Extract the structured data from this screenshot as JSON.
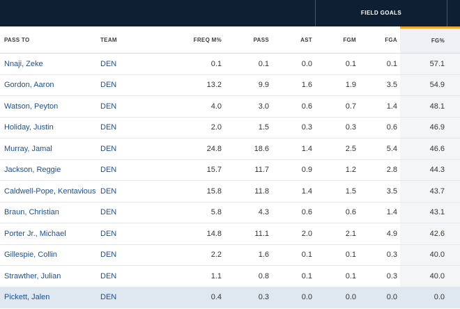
{
  "group_header": "FIELD GOALS",
  "columns": {
    "pass_to": "PASS TO",
    "team": "TEAM",
    "freq": "FREQ M%",
    "pass": "PASS",
    "ast": "AST",
    "fgm": "FGM",
    "fga": "FGA",
    "fg_pct": "FG%"
  },
  "sorted_column": "FG%",
  "accent_color": "#f5a623",
  "header_bg": "#0e1f33",
  "link_color": "#1d4f91",
  "rows": [
    {
      "name": "Nnaji, Zeke",
      "team": "DEN",
      "freq": "0.1",
      "pass": "0.1",
      "ast": "0.0",
      "fgm": "0.1",
      "fga": "0.1",
      "fg_pct": "57.1"
    },
    {
      "name": "Gordon, Aaron",
      "team": "DEN",
      "freq": "13.2",
      "pass": "9.9",
      "ast": "1.6",
      "fgm": "1.9",
      "fga": "3.5",
      "fg_pct": "54.9"
    },
    {
      "name": "Watson, Peyton",
      "team": "DEN",
      "freq": "4.0",
      "pass": "3.0",
      "ast": "0.6",
      "fgm": "0.7",
      "fga": "1.4",
      "fg_pct": "48.1"
    },
    {
      "name": "Holiday, Justin",
      "team": "DEN",
      "freq": "2.0",
      "pass": "1.5",
      "ast": "0.3",
      "fgm": "0.3",
      "fga": "0.6",
      "fg_pct": "46.9"
    },
    {
      "name": "Murray, Jamal",
      "team": "DEN",
      "freq": "24.8",
      "pass": "18.6",
      "ast": "1.4",
      "fgm": "2.5",
      "fga": "5.4",
      "fg_pct": "46.6"
    },
    {
      "name": "Jackson, Reggie",
      "team": "DEN",
      "freq": "15.7",
      "pass": "11.7",
      "ast": "0.9",
      "fgm": "1.2",
      "fga": "2.8",
      "fg_pct": "44.3"
    },
    {
      "name": "Caldwell-Pope, Kentavious",
      "team": "DEN",
      "freq": "15.8",
      "pass": "11.8",
      "ast": "1.4",
      "fgm": "1.5",
      "fga": "3.5",
      "fg_pct": "43.7"
    },
    {
      "name": "Braun, Christian",
      "team": "DEN",
      "freq": "5.8",
      "pass": "4.3",
      "ast": "0.6",
      "fgm": "0.6",
      "fga": "1.4",
      "fg_pct": "43.1"
    },
    {
      "name": "Porter Jr., Michael",
      "team": "DEN",
      "freq": "14.8",
      "pass": "11.1",
      "ast": "2.0",
      "fgm": "2.1",
      "fga": "4.9",
      "fg_pct": "42.6"
    },
    {
      "name": "Gillespie, Collin",
      "team": "DEN",
      "freq": "2.2",
      "pass": "1.6",
      "ast": "0.1",
      "fgm": "0.1",
      "fga": "0.3",
      "fg_pct": "40.0"
    },
    {
      "name": "Strawther, Julian",
      "team": "DEN",
      "freq": "1.1",
      "pass": "0.8",
      "ast": "0.1",
      "fgm": "0.1",
      "fga": "0.3",
      "fg_pct": "40.0"
    },
    {
      "name": "Pickett, Jalen",
      "team": "DEN",
      "freq": "0.4",
      "pass": "0.3",
      "ast": "0.0",
      "fgm": "0.0",
      "fga": "0.0",
      "fg_pct": "0.0"
    }
  ]
}
